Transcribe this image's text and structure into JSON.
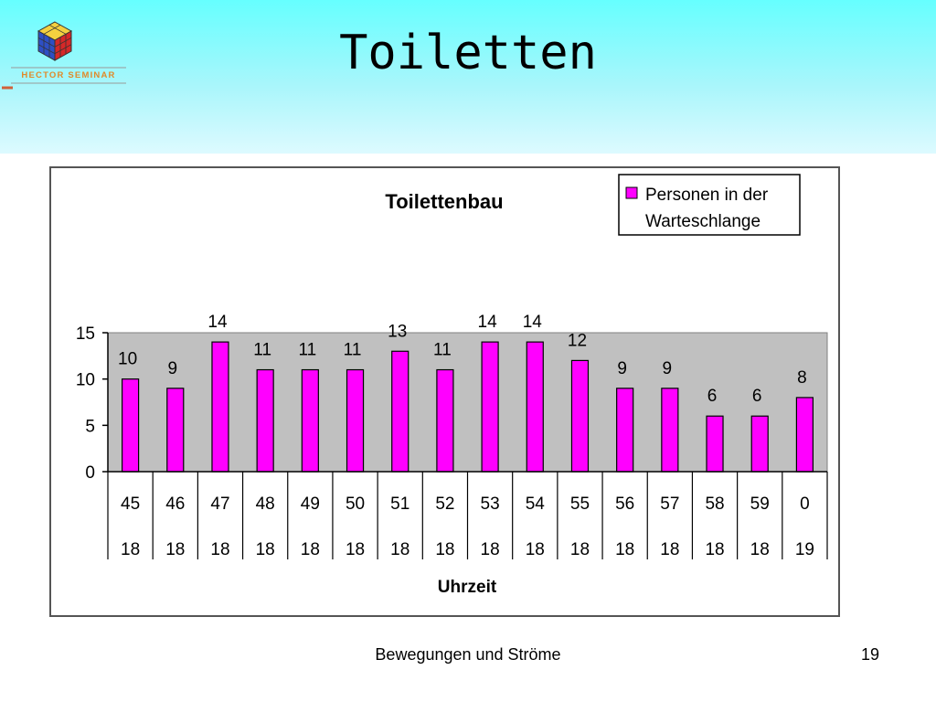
{
  "slide": {
    "title": "Toiletten",
    "logo_text": "HECTOR SEMINAR",
    "footer": "Bewegungen und Ströme",
    "page_number": "19"
  },
  "colors": {
    "header_band": "#66ffff",
    "bar": "#ff00ff",
    "plot_area": "#c0c0c0"
  },
  "chart_data": {
    "type": "bar",
    "title": "Toilettenbau",
    "xlabel": "Uhrzeit",
    "ylabel": "",
    "ylim": [
      0,
      15
    ],
    "yticks": [
      0,
      5,
      10,
      15
    ],
    "grid": false,
    "legend_position": "top-right",
    "categories": [
      [
        "45",
        "18"
      ],
      [
        "46",
        "18"
      ],
      [
        "47",
        "18"
      ],
      [
        "48",
        "18"
      ],
      [
        "49",
        "18"
      ],
      [
        "50",
        "18"
      ],
      [
        "51",
        "18"
      ],
      [
        "52",
        "18"
      ],
      [
        "53",
        "18"
      ],
      [
        "54",
        "18"
      ],
      [
        "55",
        "18"
      ],
      [
        "56",
        "18"
      ],
      [
        "57",
        "18"
      ],
      [
        "58",
        "18"
      ],
      [
        "59",
        "18"
      ],
      [
        "0",
        "19"
      ]
    ],
    "series": [
      {
        "name": "Personen in der Warteschlange",
        "legend_lines": [
          "Personen in der",
          "Warteschlange"
        ],
        "values": [
          10,
          9,
          14,
          11,
          11,
          11,
          13,
          11,
          14,
          14,
          12,
          9,
          9,
          6,
          6,
          8
        ]
      }
    ]
  }
}
